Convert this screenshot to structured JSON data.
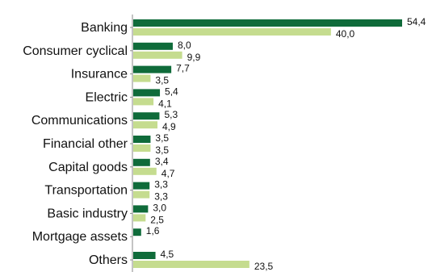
{
  "chart_data": {
    "type": "bar",
    "orientation": "horizontal",
    "title": "",
    "xlabel": "",
    "ylabel": "",
    "xlim": [
      0,
      56
    ],
    "grid": false,
    "legend": "none",
    "categories": [
      "Banking",
      "Consumer cyclical",
      "Insurance",
      "Electric",
      "Communications",
      "Financial other",
      "Capital goods",
      "Transportation",
      "Basic industry",
      "Mortgage assets",
      "Others"
    ],
    "series": [
      {
        "color": "#0f6b3a",
        "values": [
          54.4,
          8.0,
          7.7,
          5.4,
          5.3,
          3.5,
          3.4,
          3.3,
          3.0,
          1.6,
          4.5
        ],
        "labels": [
          "54,4",
          "8,0",
          "7,7",
          "5,4",
          "5,3",
          "3,5",
          "3,4",
          "3,3",
          "3,0",
          "1,6",
          "4,5"
        ]
      },
      {
        "color": "#c5dc8f",
        "values": [
          40.0,
          9.9,
          3.5,
          4.1,
          4.9,
          3.5,
          4.7,
          3.3,
          2.5,
          null,
          23.5
        ],
        "labels": [
          "40,0",
          "9,9",
          "3,5",
          "4,1",
          "4,9",
          "3,5",
          "4,7",
          "3,3",
          "2,5",
          "",
          "23,5"
        ]
      }
    ]
  }
}
